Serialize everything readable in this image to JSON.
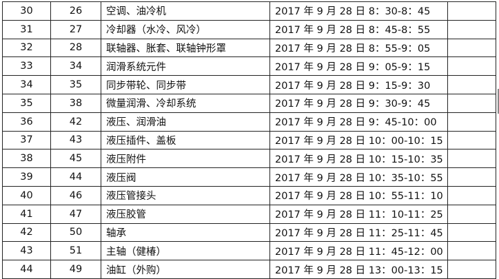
{
  "rows": [
    {
      "no": "30",
      "code": "26",
      "name": "空调、油冷机",
      "time": "2017 年 9 月 28 日 8：30-8：45",
      "note": ""
    },
    {
      "no": "31",
      "code": "27",
      "name": "冷却器（水冷、风冷）",
      "time": "2017 年 9 月 28 日 8：45-8：55",
      "note": ""
    },
    {
      "no": "32",
      "code": "28",
      "name": "联轴器、胀套、联轴钟形罩",
      "time": "2017 年 9 月 28 日 8：55-9：05",
      "note": ""
    },
    {
      "no": "33",
      "code": "34",
      "name": "润滑系统元件",
      "time": "2017 年 9 月 28 日 9：05-9：15",
      "note": ""
    },
    {
      "no": "34",
      "code": "35",
      "name": "同步带轮、同步带",
      "time": "2017 年 9 月 28 日 9：15-9：30",
      "note": ""
    },
    {
      "no": "35",
      "code": "38",
      "name": "微量润滑、冷却系统",
      "time": "2017 年 9 月 28 日 9：30-9：45",
      "note": ""
    },
    {
      "no": "36",
      "code": "42",
      "name": "液压、润滑油",
      "time": "2017 年 9 月 28 日 9：45-10：00",
      "note": ""
    },
    {
      "no": "37",
      "code": "43",
      "name": "液压插件、盖板",
      "time": "2017 年 9 月 28 日 10：00-10：15",
      "note": ""
    },
    {
      "no": "38",
      "code": "45",
      "name": "液压附件",
      "time": "2017 年 9 月 28 日 10：15-10：35",
      "note": ""
    },
    {
      "no": "39",
      "code": "44",
      "name": "液压阀",
      "time": "2017 年 9 月 28 日 10：35-10：55",
      "note": ""
    },
    {
      "no": "40",
      "code": "46",
      "name": "液压管接头",
      "time": "2017 年 9 月 28 日 10：55-11：10",
      "note": ""
    },
    {
      "no": "41",
      "code": "47",
      "name": "液压胶管",
      "time": "2017 年 9 月 28 日 11：10-11：25",
      "note": ""
    },
    {
      "no": "42",
      "code": "50",
      "name": "轴承",
      "time": "2017 年 9 月 28 日 11：25-11：45",
      "note": ""
    },
    {
      "no": "43",
      "code": "51",
      "name": "主轴（健椿）",
      "time": "2017 年 9 月 28 日 11：45-12：00",
      "note": ""
    },
    {
      "no": "44",
      "code": "49",
      "name": "油缸（外购）",
      "time": "2017 年 9 月 28 日 13：00-13：15",
      "note": ""
    }
  ]
}
